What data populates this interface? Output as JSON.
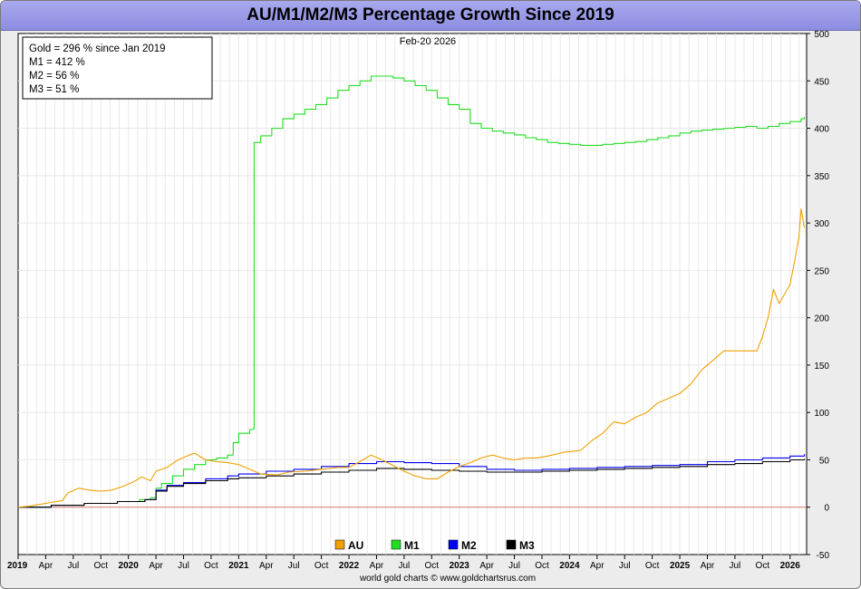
{
  "title": "AU/M1/M2/M3 Percentage Growth Since 2019",
  "date_label": "Feb-20  2026",
  "info_box": [
    "Gold = 296 % since Jan 2019",
    "M1 = 412 %",
    "M2 = 56 %",
    "M3 = 51 %"
  ],
  "footer": "world gold charts © www.goldchartsrus.com",
  "colors": {
    "AU": "#f0a000",
    "M1": "#22dd22",
    "M2": "#0000ee",
    "M3": "#000000",
    "zero_line": "#e07070",
    "grid": "#e8e8e8",
    "title_bar": "#9a9ae6"
  },
  "chart_data": {
    "type": "line",
    "title": "AU/M1/M2/M3 Percentage Growth Since 2019",
    "xlabel": "",
    "ylabel": "",
    "xlim": [
      2019.0,
      2026.15
    ],
    "ylim": [
      -50,
      500
    ],
    "y_ticks": [
      -50,
      0,
      50,
      100,
      150,
      200,
      250,
      300,
      350,
      400,
      450,
      500
    ],
    "x_ticks": [
      {
        "value": 2019.0,
        "label": "2019",
        "bold": true
      },
      {
        "value": 2019.25,
        "label": "Apr",
        "bold": false
      },
      {
        "value": 2019.5,
        "label": "Jul",
        "bold": false
      },
      {
        "value": 2019.75,
        "label": "Oct",
        "bold": false
      },
      {
        "value": 2020.0,
        "label": "2020",
        "bold": true
      },
      {
        "value": 2020.25,
        "label": "Apr",
        "bold": false
      },
      {
        "value": 2020.5,
        "label": "Jul",
        "bold": false
      },
      {
        "value": 2020.75,
        "label": "Oct",
        "bold": false
      },
      {
        "value": 2021.0,
        "label": "2021",
        "bold": true
      },
      {
        "value": 2021.25,
        "label": "Apr",
        "bold": false
      },
      {
        "value": 2021.5,
        "label": "Jul",
        "bold": false
      },
      {
        "value": 2021.75,
        "label": "Oct",
        "bold": false
      },
      {
        "value": 2022.0,
        "label": "2022",
        "bold": true
      },
      {
        "value": 2022.25,
        "label": "Apr",
        "bold": false
      },
      {
        "value": 2022.5,
        "label": "Jul",
        "bold": false
      },
      {
        "value": 2022.75,
        "label": "Oct",
        "bold": false
      },
      {
        "value": 2023.0,
        "label": "2023",
        "bold": true
      },
      {
        "value": 2023.25,
        "label": "Apr",
        "bold": false
      },
      {
        "value": 2023.5,
        "label": "Jul",
        "bold": false
      },
      {
        "value": 2023.75,
        "label": "Oct",
        "bold": false
      },
      {
        "value": 2024.0,
        "label": "2024",
        "bold": true
      },
      {
        "value": 2024.25,
        "label": "Apr",
        "bold": false
      },
      {
        "value": 2024.5,
        "label": "Jul",
        "bold": false
      },
      {
        "value": 2024.75,
        "label": "Oct",
        "bold": false
      },
      {
        "value": 2025.0,
        "label": "2025",
        "bold": true
      },
      {
        "value": 2025.25,
        "label": "Apr",
        "bold": false
      },
      {
        "value": 2025.5,
        "label": "Jul",
        "bold": false
      },
      {
        "value": 2025.75,
        "label": "Oct",
        "bold": false
      },
      {
        "value": 2026.0,
        "label": "2026",
        "bold": true
      }
    ],
    "grid": true,
    "legend_position": "bottom-center",
    "series": [
      {
        "name": "AU",
        "x": [
          2019.0,
          2019.1,
          2019.2,
          2019.3,
          2019.4,
          2019.45,
          2019.55,
          2019.65,
          2019.75,
          2019.85,
          2019.95,
          2020.05,
          2020.12,
          2020.2,
          2020.25,
          2020.35,
          2020.45,
          2020.55,
          2020.6,
          2020.7,
          2020.8,
          2020.9,
          2021.0,
          2021.1,
          2021.2,
          2021.35,
          2021.45,
          2021.6,
          2021.75,
          2021.9,
          2022.0,
          2022.1,
          2022.2,
          2022.3,
          2022.4,
          2022.5,
          2022.6,
          2022.7,
          2022.8,
          2022.9,
          2023.0,
          2023.1,
          2023.2,
          2023.3,
          2023.4,
          2023.5,
          2023.6,
          2023.7,
          2023.8,
          2023.95,
          2024.1,
          2024.2,
          2024.3,
          2024.4,
          2024.5,
          2024.6,
          2024.7,
          2024.8,
          2024.9,
          2025.0,
          2025.1,
          2025.2,
          2025.3,
          2025.4,
          2025.5,
          2025.6,
          2025.7,
          2025.75,
          2025.8,
          2025.85,
          2025.9,
          2025.95,
          2026.0,
          2026.05,
          2026.08,
          2026.1,
          2026.13
        ],
        "y": [
          0,
          1,
          3,
          5,
          7,
          15,
          20,
          18,
          17,
          18,
          22,
          27,
          32,
          28,
          38,
          42,
          50,
          55,
          57,
          50,
          48,
          47,
          45,
          40,
          35,
          34,
          37,
          38,
          40,
          42,
          42,
          48,
          55,
          50,
          44,
          38,
          33,
          30,
          30,
          37,
          43,
          47,
          52,
          55,
          52,
          50,
          52,
          52,
          54,
          58,
          60,
          70,
          78,
          90,
          88,
          95,
          100,
          110,
          115,
          120,
          130,
          145,
          155,
          165,
          165,
          165,
          165,
          180,
          200,
          230,
          215,
          225,
          235,
          265,
          285,
          315,
          295
        ]
      },
      {
        "name": "M1",
        "x": [
          2019.0,
          2019.3,
          2019.6,
          2019.9,
          2020.1,
          2020.2,
          2020.25,
          2020.3,
          2020.4,
          2020.5,
          2020.6,
          2020.7,
          2020.8,
          2020.9,
          2020.95,
          2021.0,
          2021.1,
          2021.13,
          2021.14,
          2021.2,
          2021.3,
          2021.4,
          2021.5,
          2021.6,
          2021.7,
          2021.8,
          2021.9,
          2022.0,
          2022.1,
          2022.2,
          2022.3,
          2022.4,
          2022.5,
          2022.6,
          2022.7,
          2022.8,
          2022.9,
          2023.0,
          2023.1,
          2023.2,
          2023.3,
          2023.4,
          2023.5,
          2023.6,
          2023.7,
          2023.8,
          2023.9,
          2024.0,
          2024.1,
          2024.2,
          2024.3,
          2024.4,
          2024.5,
          2024.6,
          2024.7,
          2024.8,
          2024.9,
          2025.0,
          2025.1,
          2025.2,
          2025.3,
          2025.4,
          2025.5,
          2025.6,
          2025.7,
          2025.8,
          2025.9,
          2026.0,
          2026.1,
          2026.13
        ],
        "y": [
          0,
          2,
          4,
          6,
          8,
          10,
          20,
          25,
          33,
          40,
          45,
          50,
          52,
          55,
          68,
          78,
          82,
          83,
          385,
          392,
          400,
          410,
          415,
          420,
          425,
          432,
          440,
          445,
          450,
          455,
          455,
          453,
          450,
          445,
          440,
          432,
          425,
          420,
          405,
          400,
          397,
          395,
          393,
          390,
          388,
          385,
          384,
          383,
          382,
          382,
          383,
          384,
          385,
          386,
          388,
          390,
          392,
          395,
          397,
          398,
          399,
          400,
          401,
          402,
          400,
          402,
          405,
          407,
          410,
          412
        ]
      },
      {
        "name": "M2",
        "x": [
          2019.0,
          2019.3,
          2019.6,
          2019.9,
          2020.15,
          2020.25,
          2020.35,
          2020.5,
          2020.7,
          2020.9,
          2021.0,
          2021.25,
          2021.5,
          2021.75,
          2022.0,
          2022.25,
          2022.5,
          2022.75,
          2023.0,
          2023.25,
          2023.5,
          2023.75,
          2024.0,
          2024.25,
          2024.5,
          2024.75,
          2025.0,
          2025.25,
          2025.5,
          2025.75,
          2026.0,
          2026.13
        ],
        "y": [
          0,
          2,
          4,
          6,
          8,
          18,
          23,
          26,
          30,
          33,
          35,
          38,
          40,
          43,
          46,
          48,
          47,
          46,
          43,
          40,
          39,
          40,
          41,
          42,
          43,
          44,
          45,
          48,
          50,
          52,
          54,
          56
        ]
      },
      {
        "name": "M3",
        "x": [
          2019.0,
          2019.3,
          2019.6,
          2019.9,
          2020.15,
          2020.25,
          2020.35,
          2020.5,
          2020.7,
          2020.9,
          2021.0,
          2021.25,
          2021.5,
          2021.75,
          2022.0,
          2022.25,
          2022.5,
          2022.75,
          2023.0,
          2023.25,
          2023.5,
          2023.75,
          2024.0,
          2024.25,
          2024.5,
          2024.75,
          2025.0,
          2025.25,
          2025.5,
          2025.75,
          2026.0,
          2026.13
        ],
        "y": [
          0,
          2,
          4,
          6,
          8,
          17,
          22,
          25,
          28,
          30,
          31,
          33,
          35,
          37,
          39,
          41,
          40,
          39,
          38,
          37,
          37,
          38,
          39,
          40,
          41,
          42,
          43,
          45,
          46,
          48,
          50,
          51
        ]
      }
    ]
  }
}
